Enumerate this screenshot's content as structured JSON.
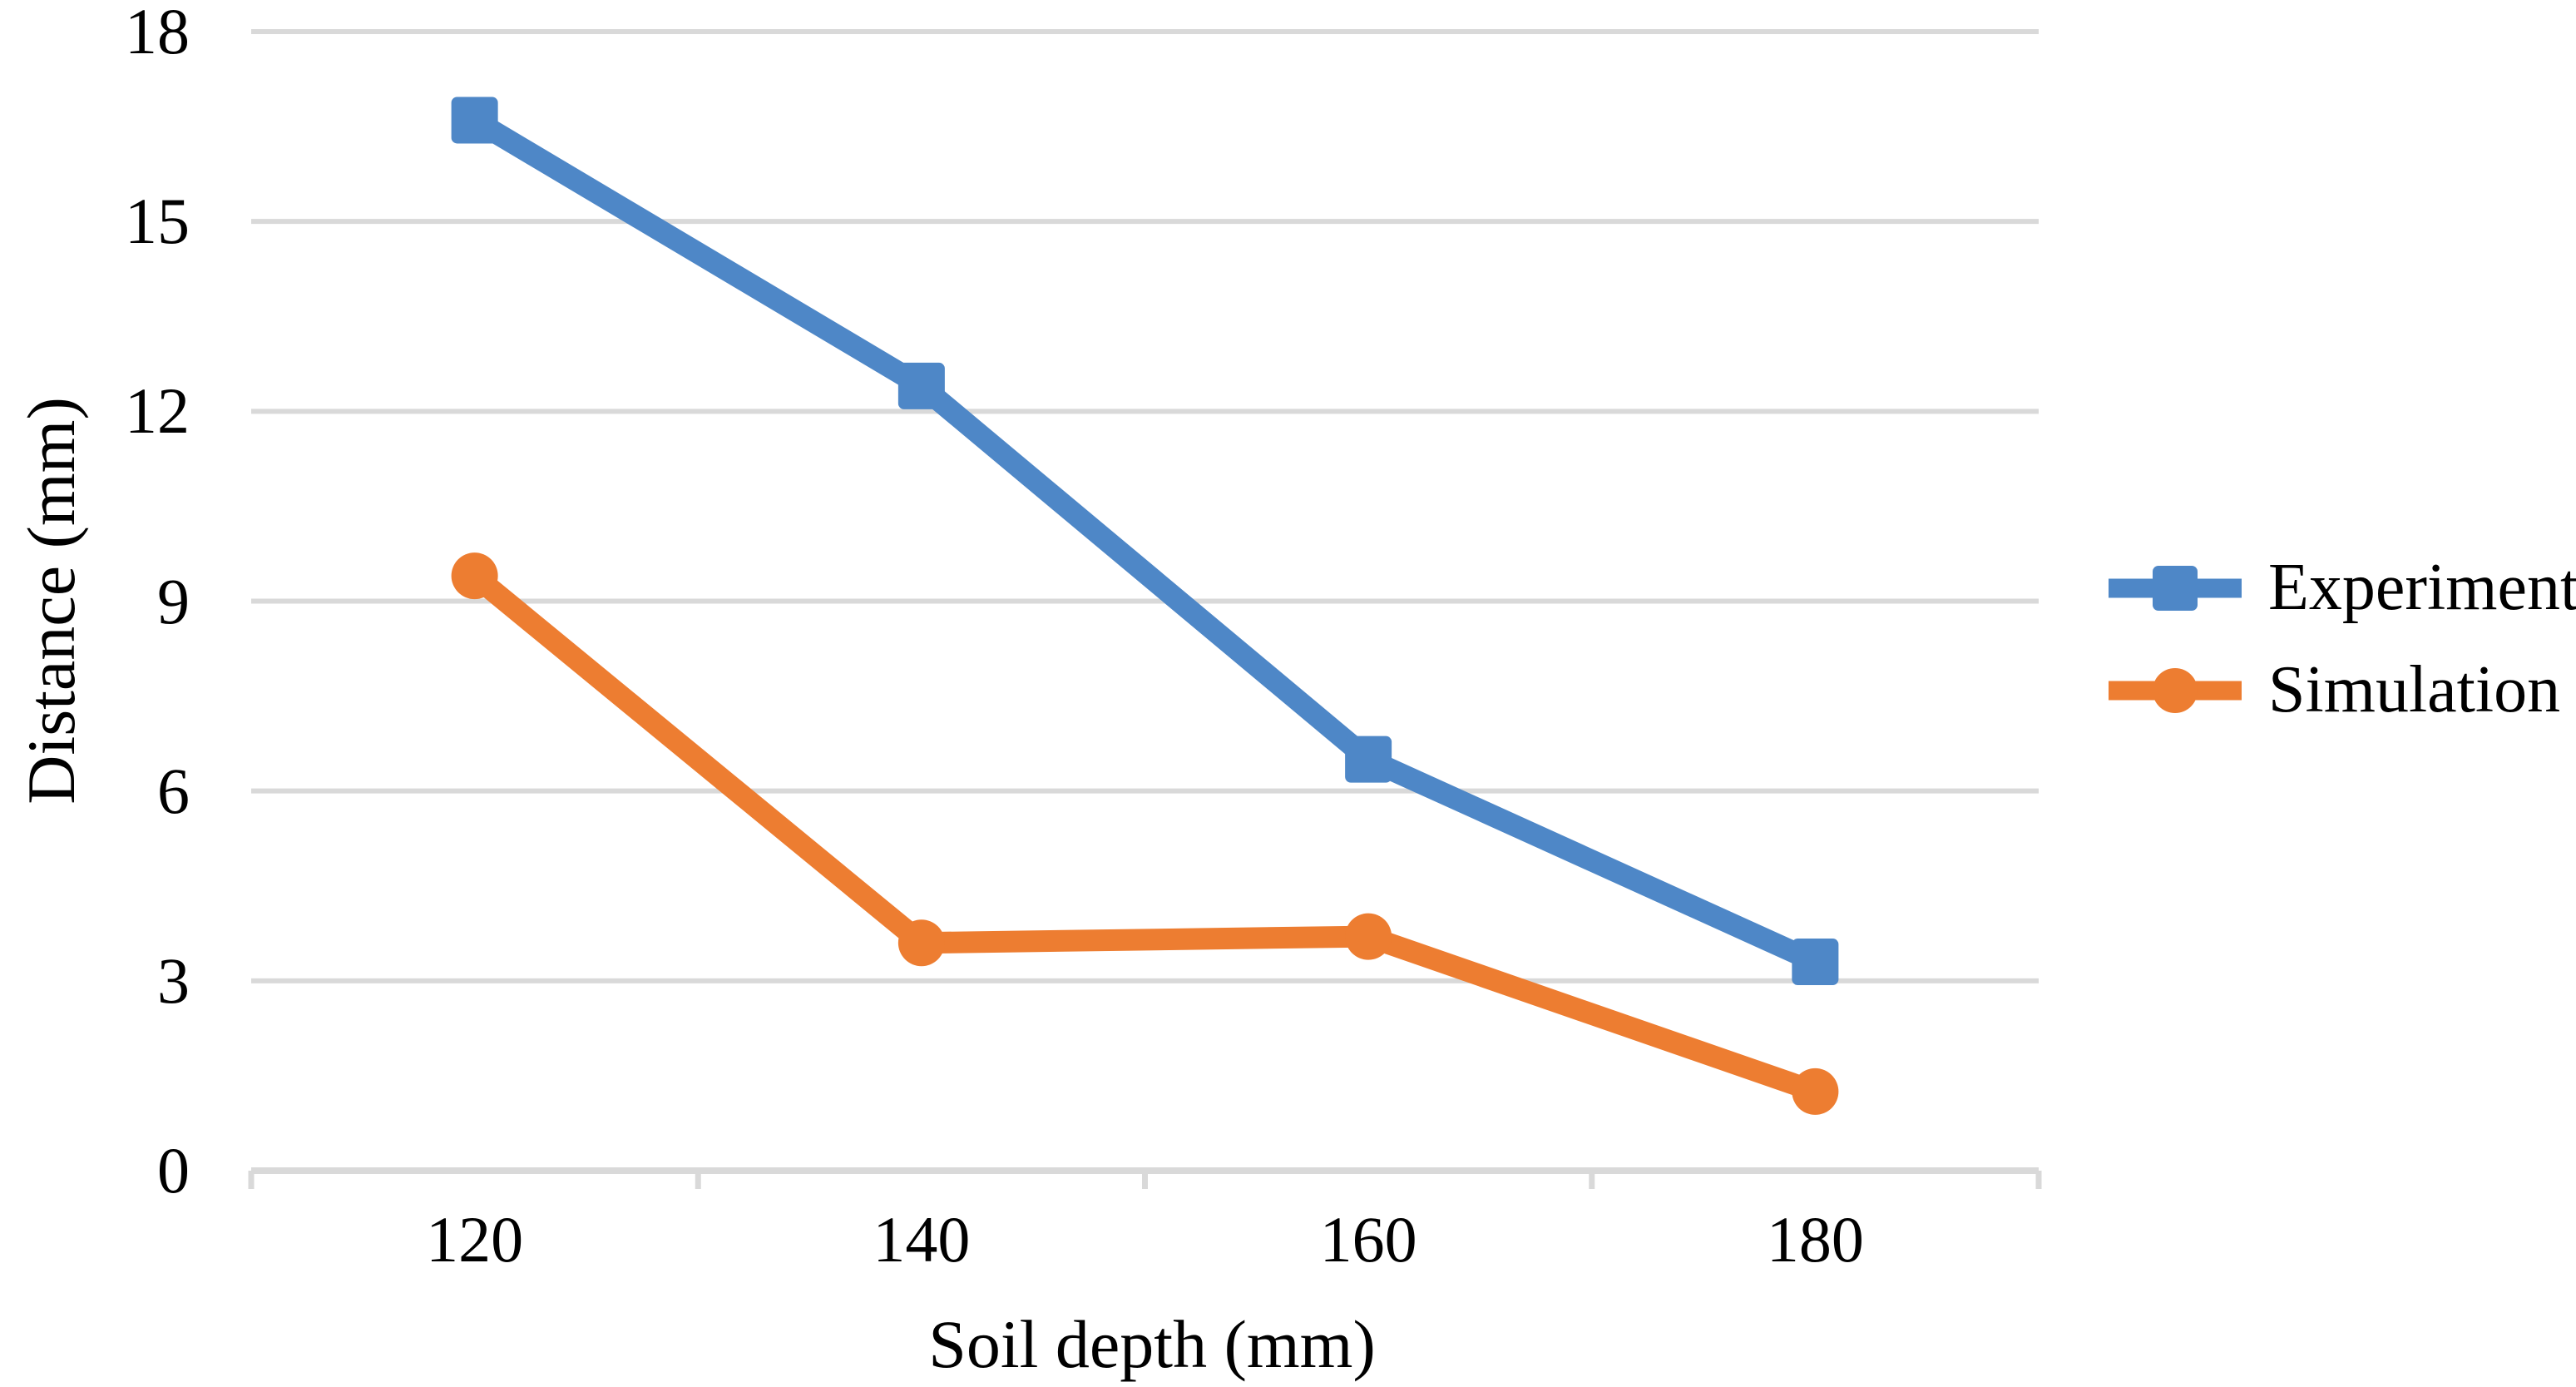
{
  "chart_data": {
    "type": "line",
    "title": "",
    "xlabel": "Soil depth (mm)",
    "ylabel": "Distance (mm)",
    "categories": [
      120,
      140,
      160,
      180
    ],
    "x_tick_labels": [
      "120",
      "140",
      "160",
      "180"
    ],
    "series": [
      {
        "name": "Experiment",
        "marker": "square",
        "color": "#4E87C7",
        "values": [
          16.6,
          12.4,
          6.5,
          3.3
        ]
      },
      {
        "name": "Simulation",
        "marker": "circle",
        "color": "#ED7D31",
        "values": [
          9.4,
          3.6,
          3.7,
          1.25
        ]
      }
    ],
    "ylim": [
      0,
      18
    ],
    "yticks": [
      0,
      3,
      6,
      9,
      12,
      15,
      18
    ],
    "grid": "horizontal-only",
    "gridline_color": "#D9D9D9",
    "axis_line_color": "#D9D9D9",
    "legend_position": "right"
  }
}
